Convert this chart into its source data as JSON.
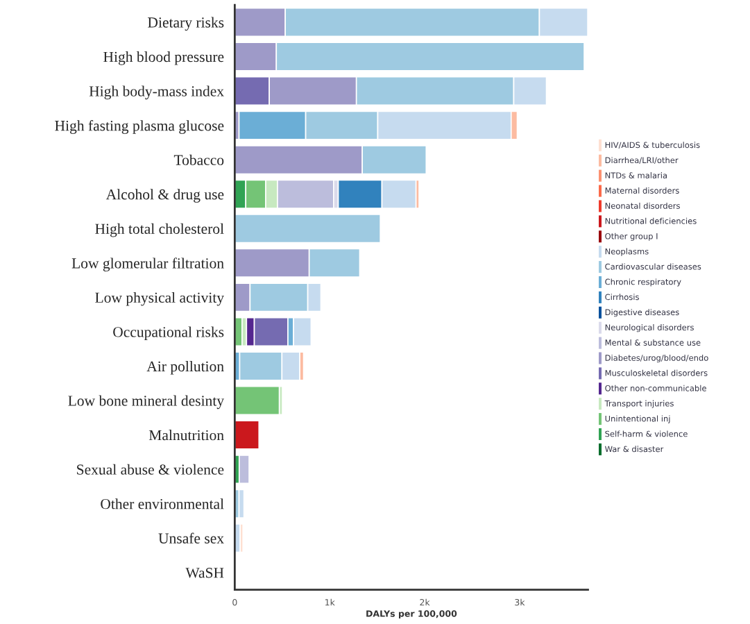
{
  "chart_data": {
    "type": "bar",
    "orientation": "horizontal",
    "stacked": true,
    "xlabel": "DALYs per 100,000",
    "categories": [
      "Dietary risks",
      "High blood pressure",
      "High body-mass index",
      "High fasting plasma glucose",
      "Tobacco",
      "Alcohol & drug use",
      "High total cholesterol",
      "Low glomerular filtration",
      "Low physical activity",
      "Occupational risks",
      "Air pollution",
      "Low bone mineral desinty",
      "Malnutrition",
      "Sexual abuse & violence",
      "Other environmental",
      "Unsafe sex",
      "WaSH"
    ],
    "xlim": [
      0,
      3720
    ],
    "xticks": [
      0,
      {
        "value": 1000,
        "label": "1k"
      },
      {
        "value": 2000,
        "label": "2k"
      },
      {
        "value": 3000,
        "label": "3k"
      }
    ],
    "legend": "right",
    "series": [
      {
        "name": "War & disaster",
        "color": "#006d2c",
        "values": [
          null,
          null,
          null,
          null,
          null,
          null,
          null,
          null,
          null,
          null,
          null,
          null,
          null,
          null,
          null,
          null,
          null
        ]
      },
      {
        "name": "Self-harm & violence",
        "color": "#31a354",
        "values": [
          null,
          null,
          null,
          null,
          null,
          116,
          null,
          null,
          null,
          null,
          null,
          null,
          null,
          47,
          null,
          null,
          null
        ]
      },
      {
        "name": "Unintentional inj",
        "color": "#74c476",
        "values": [
          null,
          null,
          null,
          null,
          null,
          210,
          null,
          null,
          null,
          77,
          null,
          470,
          null,
          null,
          null,
          null,
          null
        ]
      },
      {
        "name": "Transport injuries",
        "color": "#c7e9c0",
        "values": [
          null,
          null,
          null,
          null,
          null,
          124,
          null,
          null,
          null,
          47,
          null,
          32,
          null,
          null,
          null,
          null,
          null
        ]
      },
      {
        "name": "Other non-communicable",
        "color": "#54278f",
        "values": [
          null,
          null,
          null,
          null,
          null,
          null,
          null,
          null,
          null,
          82,
          null,
          null,
          null,
          null,
          null,
          null,
          null
        ]
      },
      {
        "name": "Musculoskeletal disorders",
        "color": "#756bb1",
        "values": [
          null,
          null,
          364,
          null,
          null,
          null,
          null,
          null,
          null,
          354,
          null,
          null,
          null,
          null,
          null,
          null,
          null
        ]
      },
      {
        "name": "Diabetes/urog/blood/endo",
        "color": "#9e9ac8",
        "values": [
          532,
          438,
          917,
          45,
          1343,
          null,
          null,
          784,
          161,
          null,
          null,
          null,
          null,
          null,
          null,
          null,
          null
        ]
      },
      {
        "name": "Mental & substance use",
        "color": "#bcbddc",
        "values": [
          null,
          null,
          null,
          null,
          null,
          591,
          null,
          null,
          null,
          null,
          null,
          null,
          null,
          104,
          null,
          null,
          null
        ]
      },
      {
        "name": "Neurological disorders",
        "color": "#dadaeb",
        "values": [
          null,
          null,
          null,
          null,
          null,
          49,
          null,
          null,
          null,
          null,
          null,
          null,
          null,
          null,
          null,
          null,
          null
        ]
      },
      {
        "name": "Digestive diseases",
        "color": "#08519c",
        "values": [
          null,
          null,
          null,
          null,
          null,
          null,
          null,
          null,
          null,
          null,
          null,
          null,
          null,
          null,
          null,
          null,
          null
        ]
      },
      {
        "name": "Cirrhosis",
        "color": "#3182bd",
        "values": [
          null,
          null,
          null,
          null,
          null,
          460,
          null,
          null,
          null,
          null,
          null,
          null,
          null,
          null,
          null,
          null,
          null
        ]
      },
      {
        "name": "Chronic respiratory",
        "color": "#6baed6",
        "values": [
          null,
          null,
          null,
          702,
          null,
          null,
          null,
          null,
          null,
          59,
          52,
          null,
          null,
          null,
          null,
          null,
          null
        ]
      },
      {
        "name": "Cardiovascular diseases",
        "color": "#9ecae1",
        "values": [
          2676,
          3242,
          1657,
          759,
          673,
          null,
          1533,
          532,
          608,
          null,
          445,
          null,
          null,
          null,
          45,
          null,
          null
        ]
      },
      {
        "name": "Neoplasms",
        "color": "#c6dbef",
        "values": [
          509,
          null,
          344,
          1405,
          null,
          359,
          null,
          null,
          138,
          185,
          188,
          null,
          null,
          null,
          52,
          57,
          null
        ]
      },
      {
        "name": "Other group I",
        "color": "#99000d",
        "values": [
          null,
          null,
          null,
          null,
          null,
          null,
          null,
          null,
          null,
          null,
          null,
          null,
          null,
          null,
          null,
          null,
          null
        ]
      },
      {
        "name": "Nutritional deficiencies",
        "color": "#cb181d",
        "values": [
          null,
          null,
          null,
          null,
          null,
          null,
          null,
          null,
          null,
          null,
          null,
          null,
          255,
          null,
          null,
          null,
          null
        ]
      },
      {
        "name": "Neonatal disorders",
        "color": "#ef3b2c",
        "values": [
          null,
          null,
          null,
          null,
          null,
          null,
          null,
          null,
          null,
          null,
          null,
          null,
          null,
          null,
          null,
          null,
          null
        ]
      },
      {
        "name": "Maternal disorders",
        "color": "#fb6a4a",
        "values": [
          null,
          null,
          null,
          null,
          null,
          null,
          null,
          null,
          null,
          null,
          null,
          null,
          null,
          null,
          null,
          null,
          null
        ]
      },
      {
        "name": "NTDs & malaria",
        "color": "#fc9272",
        "values": [
          null,
          null,
          null,
          null,
          null,
          null,
          null,
          null,
          null,
          null,
          null,
          null,
          null,
          null,
          null,
          null,
          null
        ]
      },
      {
        "name": "Diarrhea/LRI/other",
        "color": "#fcbba1",
        "values": [
          null,
          null,
          null,
          64,
          null,
          32,
          null,
          null,
          null,
          null,
          40,
          null,
          null,
          null,
          null,
          null,
          null
        ]
      },
      {
        "name": "HIV/AIDS & tuberculosis",
        "color": "#fee0d2",
        "values": [
          null,
          null,
          null,
          null,
          null,
          null,
          null,
          null,
          null,
          null,
          null,
          null,
          null,
          null,
          null,
          30,
          null
        ]
      }
    ]
  }
}
